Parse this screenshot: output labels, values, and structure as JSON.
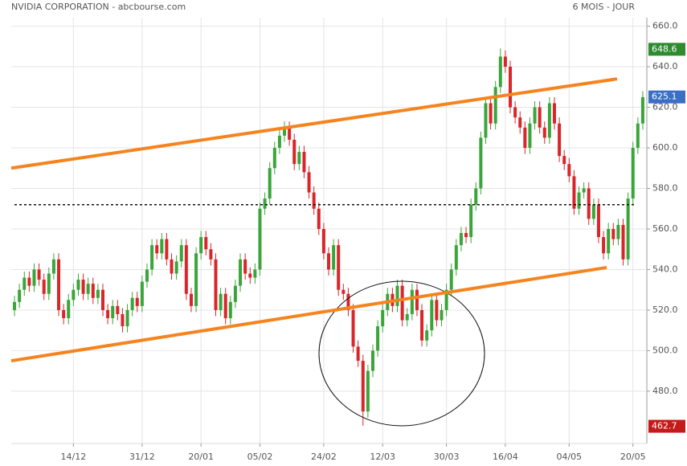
{
  "chart_data": {
    "type": "candlestick",
    "title": "NVIDIA CORPORATION - abcbourse.com",
    "subtitle": "6 MOIS - JOUR",
    "categories": [
      null,
      null,
      null,
      null,
      null,
      null,
      null,
      null,
      null,
      null,
      null,
      null,
      "14/12",
      null,
      null,
      null,
      null,
      null,
      null,
      null,
      null,
      null,
      null,
      null,
      null,
      null,
      "31/12",
      null,
      null,
      null,
      null,
      null,
      null,
      null,
      null,
      null,
      null,
      null,
      "20/01",
      null,
      null,
      null,
      null,
      null,
      null,
      null,
      null,
      null,
      null,
      null,
      "05/02",
      null,
      null,
      null,
      null,
      null,
      null,
      null,
      null,
      null,
      null,
      null,
      null,
      "24/02",
      null,
      null,
      null,
      null,
      null,
      null,
      null,
      null,
      null,
      null,
      null,
      "12/03",
      null,
      null,
      null,
      null,
      null,
      null,
      null,
      null,
      null,
      null,
      null,
      null,
      "30/03",
      null,
      null,
      null,
      null,
      null,
      null,
      null,
      null,
      null,
      null,
      null,
      "16/04",
      null,
      null,
      null,
      null,
      null,
      null,
      null,
      null,
      null,
      null,
      null,
      null,
      "04/05",
      null,
      null,
      null,
      null,
      null,
      null,
      null,
      null,
      null,
      null,
      null,
      null,
      "20/05",
      null,
      null
    ],
    "open": [
      520,
      524,
      530,
      536,
      532,
      540,
      535,
      528,
      538,
      545,
      520,
      516,
      525,
      530,
      535,
      528,
      533,
      526,
      530,
      520,
      516,
      522,
      518,
      512,
      520,
      526,
      522,
      534,
      540,
      552,
      548,
      555,
      545,
      538,
      544,
      552,
      528,
      522,
      548,
      556,
      550,
      545,
      520,
      528,
      516,
      524,
      532,
      545,
      538,
      536,
      540,
      570,
      575,
      590,
      600,
      606,
      610,
      604,
      592,
      598,
      588,
      578,
      570,
      560,
      548,
      540,
      552,
      530,
      528,
      520,
      502,
      495,
      470,
      490,
      500,
      512,
      520,
      528,
      522,
      532,
      515,
      518,
      530,
      520,
      505,
      510,
      525,
      515,
      520,
      530,
      540,
      552,
      558,
      556,
      572,
      580,
      605,
      622,
      612,
      630,
      645,
      640,
      620,
      615,
      610,
      600,
      612,
      620,
      610,
      605,
      622,
      612,
      596,
      592,
      586,
      570,
      578,
      580,
      565,
      572,
      556,
      548,
      560,
      555,
      562,
      545,
      575,
      600,
      612
    ],
    "high": [
      527,
      533,
      539,
      539,
      543,
      543,
      538,
      541,
      548,
      548,
      523,
      528,
      533,
      538,
      538,
      536,
      536,
      533,
      533,
      523,
      525,
      525,
      521,
      523,
      529,
      529,
      537,
      543,
      555,
      555,
      558,
      558,
      548,
      547,
      555,
      555,
      531,
      551,
      559,
      559,
      553,
      548,
      531,
      531,
      527,
      535,
      548,
      548,
      541,
      543,
      573,
      578,
      593,
      603,
      609,
      613,
      613,
      607,
      601,
      601,
      591,
      581,
      573,
      563,
      551,
      555,
      555,
      533,
      531,
      523,
      505,
      498,
      493,
      503,
      515,
      523,
      531,
      531,
      535,
      535,
      521,
      533,
      533,
      523,
      513,
      528,
      528,
      523,
      533,
      543,
      555,
      561,
      561,
      575,
      583,
      608,
      625,
      625,
      633,
      649,
      648,
      643,
      623,
      618,
      613,
      615,
      623,
      623,
      613,
      625,
      625,
      615,
      599,
      595,
      589,
      581,
      583,
      583,
      575,
      575,
      559,
      563,
      563,
      565,
      565,
      578,
      603,
      615,
      628
    ],
    "low": [
      517,
      521,
      527,
      529,
      529,
      532,
      525,
      525,
      535,
      517,
      513,
      513,
      522,
      527,
      525,
      525,
      523,
      523,
      517,
      513,
      513,
      515,
      509,
      509,
      517,
      519,
      519,
      531,
      537,
      545,
      545,
      542,
      535,
      535,
      541,
      525,
      519,
      519,
      545,
      547,
      542,
      517,
      517,
      513,
      513,
      521,
      529,
      535,
      533,
      533,
      537,
      567,
      572,
      587,
      597,
      603,
      601,
      589,
      589,
      585,
      575,
      567,
      557,
      545,
      537,
      537,
      527,
      525,
      517,
      499,
      492,
      463,
      467,
      487,
      497,
      509,
      517,
      519,
      519,
      512,
      512,
      515,
      517,
      502,
      502,
      507,
      512,
      512,
      517,
      527,
      537,
      549,
      553,
      553,
      569,
      577,
      602,
      609,
      609,
      627,
      637,
      617,
      612,
      607,
      597,
      597,
      609,
      607,
      602,
      602,
      609,
      593,
      589,
      583,
      567,
      567,
      575,
      562,
      562,
      553,
      545,
      545,
      552,
      552,
      542,
      542,
      572,
      597,
      609
    ],
    "close": [
      524,
      530,
      536,
      532,
      540,
      535,
      528,
      538,
      545,
      520,
      516,
      525,
      530,
      535,
      528,
      533,
      526,
      530,
      520,
      516,
      522,
      518,
      512,
      520,
      526,
      522,
      534,
      540,
      552,
      548,
      555,
      545,
      538,
      544,
      552,
      528,
      522,
      548,
      556,
      550,
      545,
      520,
      528,
      516,
      524,
      532,
      545,
      538,
      536,
      540,
      570,
      575,
      590,
      600,
      606,
      610,
      604,
      592,
      598,
      588,
      578,
      570,
      560,
      548,
      540,
      552,
      530,
      528,
      520,
      502,
      495,
      470,
      490,
      500,
      512,
      520,
      528,
      522,
      532,
      515,
      518,
      530,
      520,
      505,
      510,
      525,
      515,
      520,
      530,
      540,
      552,
      558,
      556,
      572,
      580,
      605,
      622,
      612,
      630,
      645,
      640,
      620,
      615,
      610,
      600,
      612,
      620,
      610,
      605,
      622,
      612,
      596,
      592,
      586,
      570,
      578,
      580,
      565,
      572,
      556,
      548,
      560,
      555,
      562,
      545,
      575,
      600,
      612,
      625
    ],
    "up_color": "#3aa53a",
    "down_color": "#d9262b",
    "ylim": [
      455,
      663
    ],
    "yticks": [
      {
        "value": 480,
        "label": "480.0"
      },
      {
        "value": 500,
        "label": "500.0"
      },
      {
        "value": 520,
        "label": "520.0"
      },
      {
        "value": 540,
        "label": "540.0"
      },
      {
        "value": 560,
        "label": "560.0"
      },
      {
        "value": 580,
        "label": "580.0"
      },
      {
        "value": 600,
        "label": "600.0"
      },
      {
        "value": 620,
        "label": "620.0"
      },
      {
        "value": 640,
        "label": "640.0"
      },
      {
        "value": 660,
        "label": "660.0"
      }
    ],
    "grid": true,
    "trendlines": [
      {
        "start": 590,
        "end": 634,
        "color": "#f5841f"
      },
      {
        "start": 495,
        "end": 541,
        "color": "#f5841f"
      }
    ],
    "reference_line": 572,
    "price_tags": [
      {
        "value": 648.6,
        "label": "648.6",
        "color": "#2e8b2e"
      },
      {
        "value": 625.1,
        "label": "625.1",
        "color": "#3b6fc6"
      },
      {
        "value": 462.7,
        "label": "462.7",
        "color": "#c41a1a"
      }
    ]
  }
}
